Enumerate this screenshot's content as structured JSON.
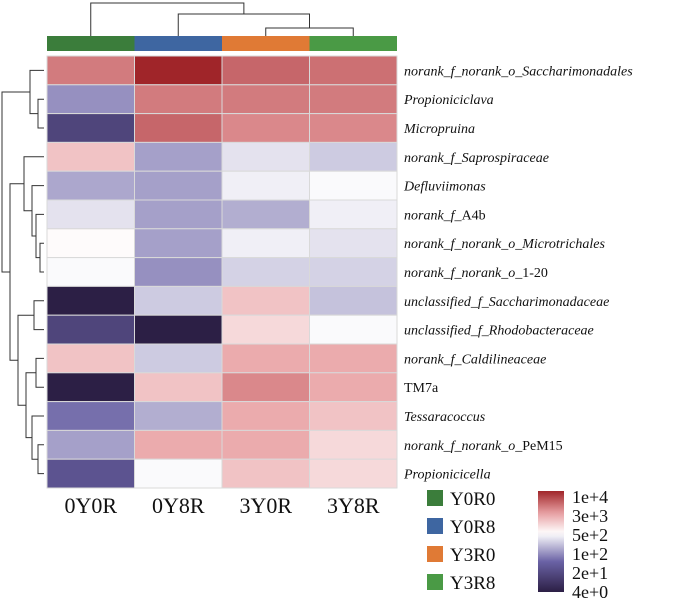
{
  "chart_data": {
    "type": "heatmap",
    "columns": [
      "0Y0R",
      "0Y8R",
      "3Y0R",
      "3Y8R"
    ],
    "column_groups": [
      {
        "name": "Y0R0",
        "color": "#3b7d3b"
      },
      {
        "name": "Y0R8",
        "color": "#3e66a1"
      },
      {
        "name": "Y3R0",
        "color": "#e07a35"
      },
      {
        "name": "Y3R8",
        "color": "#4a9a45"
      }
    ],
    "rows": [
      {
        "prefix": "norank_f_norank_o_",
        "prefix_italic": true,
        "name": "Saccharimonadales",
        "name_italic": true
      },
      {
        "prefix": "",
        "prefix_italic": true,
        "name": "Propioniciclava",
        "name_italic": true
      },
      {
        "prefix": "",
        "prefix_italic": true,
        "name": "Micropruina",
        "name_italic": true
      },
      {
        "prefix": "norank_f_",
        "prefix_italic": true,
        "name": "Saprospiraceae",
        "name_italic": true
      },
      {
        "prefix": "",
        "prefix_italic": true,
        "name": "Defluviimonas",
        "name_italic": true
      },
      {
        "prefix": "norank_f_",
        "prefix_italic": true,
        "name": "A4b",
        "name_italic": false
      },
      {
        "prefix": "norank_f_norank_o_",
        "prefix_italic": true,
        "name": "Microtrichales",
        "name_italic": true
      },
      {
        "prefix": "norank_f_norank_o_",
        "prefix_italic": true,
        "name": "1-20",
        "name_italic": false
      },
      {
        "prefix": "unclassified_f_",
        "prefix_italic": true,
        "name": "Saccharimonadaceae",
        "name_italic": true
      },
      {
        "prefix": "unclassified_f_",
        "prefix_italic": true,
        "name": "Rhodobacteraceae",
        "name_italic": true
      },
      {
        "prefix": "norank_f_",
        "prefix_italic": true,
        "name": "Caldilineaceae",
        "name_italic": true
      },
      {
        "prefix": "",
        "prefix_italic": false,
        "name": "TM7a",
        "name_italic": false
      },
      {
        "prefix": "",
        "prefix_italic": true,
        "name": "Tessaracoccus",
        "name_italic": true
      },
      {
        "prefix": "norank_f_norank_o_",
        "prefix_italic": true,
        "name": "PeM15",
        "name_italic": false
      },
      {
        "prefix": "",
        "prefix_italic": true,
        "name": "Propionicicella",
        "name_italic": true
      }
    ],
    "values": [
      [
        3000,
        10000,
        4000,
        3500
      ],
      [
        80,
        3000,
        3000,
        3000
      ],
      [
        15,
        4000,
        2500,
        2500
      ],
      [
        1000,
        100,
        250,
        180
      ],
      [
        110,
        100,
        300,
        350
      ],
      [
        250,
        100,
        120,
        300
      ],
      [
        400,
        100,
        300,
        250
      ],
      [
        350,
        80,
        200,
        200
      ],
      [
        4,
        180,
        1000,
        160
      ],
      [
        15,
        2,
        700,
        350
      ],
      [
        1000,
        180,
        1500,
        1500
      ],
      [
        3,
        1000,
        2500,
        1500
      ],
      [
        50,
        120,
        1500,
        1000
      ],
      [
        100,
        1500,
        1500,
        700
      ],
      [
        25,
        350,
        1000,
        700
      ]
    ],
    "scale": {
      "type": "log",
      "min": 4,
      "max": 10000,
      "tick_labels": [
        "1e+4",
        "3e+3",
        "5e+2",
        "1e+2",
        "2e+1",
        "4e+0"
      ],
      "tick_values": [
        10000,
        3000,
        500,
        100,
        20,
        4
      ],
      "colors": {
        "low": "#2c1f45",
        "mid_low": "#6a62a5",
        "mid": "#ffffff",
        "mid_high": "#e8a0a3",
        "high": "#a02529"
      }
    },
    "legend_placement": "bottom-right"
  }
}
